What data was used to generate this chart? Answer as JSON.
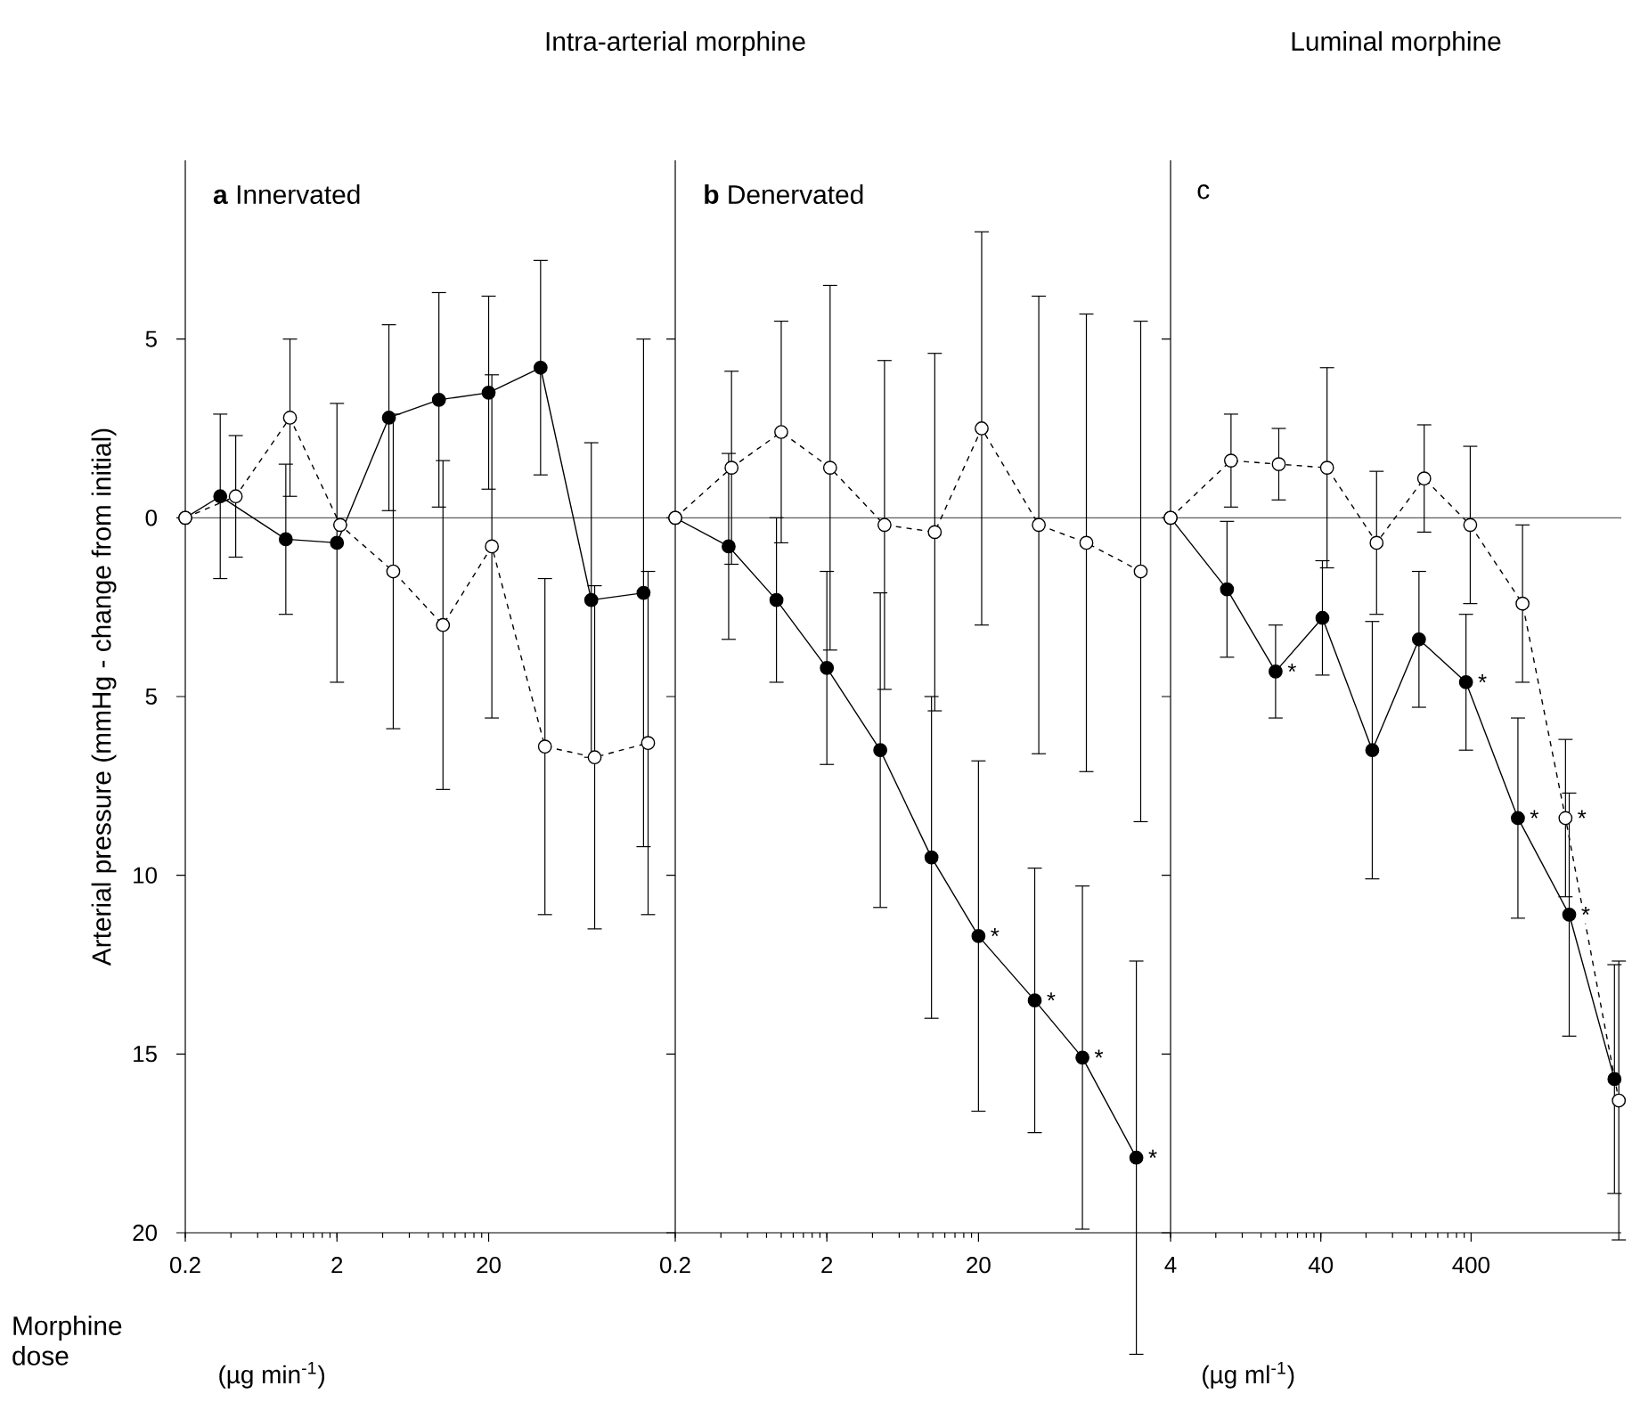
{
  "chart_data": [
    {
      "type": "line",
      "title": "**a** Innervated",
      "ylabel": "Arterial pressure (mmHg - change from initial)",
      "xlabel": "(µg min$^{-1}$)",
      "log": "x",
      "xlim": [
        0.2,
        340
      ],
      "xticks": [
        0.2,
        2,
        20
      ],
      "ylim": [
        -20,
        10
      ],
      "yticks": [
        5,
        0,
        {
          "value": -5,
          "label": "5"
        },
        {
          "value": -10,
          "label": "10"
        },
        {
          "value": -15,
          "label": "15"
        },
        {
          "value": -20,
          "label": "20"
        }
      ],
      "marker": "circle",
      "ref_lines": [
        {
          "axis": "y",
          "value": 0
        }
      ],
      "annotations": [
        "Intra-arterial morphine",
        "Morphine dose"
      ],
      "series": [
        {
          "color": "#000000",
          "line_style": "solid",
          "x": [
            0.2,
            0.34,
            0.92,
            2,
            4.4,
            9.4,
            20,
            44,
            95,
            210
          ],
          "values": [
            0,
            0.6,
            -0.6,
            -0.7,
            2.8,
            3.3,
            3.5,
            4.2,
            -2.3,
            -2.1
          ],
          "errors": [
            null,
            2.3,
            2.1,
            3.9,
            2.6,
            3.0,
            2.7,
            3.0,
            4.4,
            7.1
          ]
        },
        {
          "color": "#000000",
          "line_style": "dashed",
          "x": [
            0.2,
            0.43,
            0.98,
            2.1,
            4.7,
            10,
            21,
            47,
            100,
            225
          ],
          "values": [
            0,
            0.6,
            2.8,
            -0.2,
            -1.5,
            -3.0,
            -0.8,
            -6.4,
            -6.7,
            -6.3
          ],
          "errors": [
            null,
            1.7,
            2.2,
            null,
            4.4,
            4.6,
            4.8,
            4.7,
            4.8,
            4.8
          ]
        }
      ]
    },
    {
      "type": "line",
      "title": "**b** Denervated",
      "log": "x",
      "xlim": [
        0.2,
        370
      ],
      "xticks": [
        0.2,
        2,
        20
      ],
      "ylim": [
        -20,
        10
      ],
      "yticks": [
        {
          "value": 5,
          "label": null
        },
        {
          "value": 0,
          "label": null
        },
        {
          "value": -5,
          "label": null
        },
        {
          "value": -10,
          "label": null
        },
        {
          "value": -15,
          "label": null
        },
        {
          "value": -20,
          "label": null
        }
      ],
      "tick_labels": "x",
      "marker": "circle",
      "ref_lines": [
        {
          "axis": "y",
          "value": 0
        }
      ],
      "annotations": [
        {
          "text": "*",
          "x": 20,
          "y": -11.7
        },
        {
          "text": "*",
          "x": 47,
          "y": -13.5
        },
        {
          "text": "*",
          "x": 97,
          "y": -15.1
        },
        {
          "text": "*",
          "x": 220,
          "y": -17.9
        }
      ],
      "series": [
        {
          "color": "#000000",
          "line_style": "solid",
          "x": [
            0.2,
            0.45,
            0.93,
            2,
            4.5,
            9.8,
            20,
            47,
            97,
            220
          ],
          "values": [
            0,
            -0.8,
            -2.3,
            -4.2,
            -6.5,
            -9.5,
            -11.7,
            -13.5,
            -15.1,
            -17.9
          ],
          "errors": [
            null,
            2.6,
            2.3,
            2.7,
            4.4,
            4.5,
            4.9,
            3.7,
            4.8,
            5.5
          ]
        },
        {
          "color": "#000000",
          "line_style": "dashed",
          "x": [
            0.2,
            0.47,
            1.0,
            2.1,
            4.8,
            10.3,
            21,
            50,
            103,
            235
          ],
          "values": [
            0,
            1.4,
            2.4,
            1.4,
            -0.2,
            -0.4,
            2.5,
            -0.2,
            -0.7,
            -1.5
          ],
          "errors": [
            null,
            2.7,
            3.1,
            5.1,
            4.6,
            5.0,
            5.5,
            6.4,
            6.4,
            7.0
          ]
        }
      ]
    },
    {
      "type": "line",
      "title": "c",
      "xlabel": "(µg ml$^{-1}$)",
      "log": "x",
      "xlim": [
        4,
        4000
      ],
      "xticks": [
        4,
        40,
        400
      ],
      "ylim": [
        -20,
        10
      ],
      "yticks": [
        {
          "value": 5,
          "label": null
        },
        {
          "value": 0,
          "label": null
        },
        {
          "value": -5,
          "label": null
        },
        {
          "value": -10,
          "label": null
        },
        {
          "value": -15,
          "label": null
        },
        {
          "value": -20,
          "label": null
        }
      ],
      "tick_labels": "x",
      "marker": "circle",
      "ref_lines": [
        {
          "axis": "y",
          "value": 0
        }
      ],
      "annotations": [
        "Luminal morphine",
        {
          "text": "*",
          "x": 20,
          "y": -4.3
        },
        {
          "text": "*",
          "x": 370,
          "y": -4.6
        },
        {
          "text": "*",
          "x": 820,
          "y": -8.4
        },
        {
          "text": "*",
          "x": 1800,
          "y": -11.1
        },
        {
          "text": "*",
          "x": 1700,
          "y": -8.4
        }
      ],
      "series": [
        {
          "color": "#000000",
          "line_style": "solid",
          "x": [
            4,
            9.5,
            20,
            41,
            88,
            180,
            370,
            820,
            1800,
            3600
          ],
          "values": [
            0,
            -2.0,
            -4.3,
            -2.8,
            -6.5,
            -3.4,
            -4.6,
            -8.4,
            -11.1,
            -15.7
          ],
          "errors": [
            null,
            1.9,
            1.3,
            1.6,
            3.6,
            1.9,
            1.9,
            2.8,
            3.4,
            3.2
          ]
        },
        {
          "color": "#000000",
          "line_style": "dashed",
          "x": [
            4,
            10.1,
            21,
            44,
            94,
            195,
            395,
            880,
            1700,
            3850
          ],
          "values": [
            0,
            1.6,
            1.5,
            1.4,
            -0.7,
            1.1,
            -0.2,
            -2.4,
            -8.4,
            -16.3
          ],
          "errors": [
            null,
            1.3,
            1.0,
            2.8,
            2.0,
            1.5,
            2.2,
            2.2,
            2.2,
            3.9
          ]
        }
      ]
    }
  ]
}
